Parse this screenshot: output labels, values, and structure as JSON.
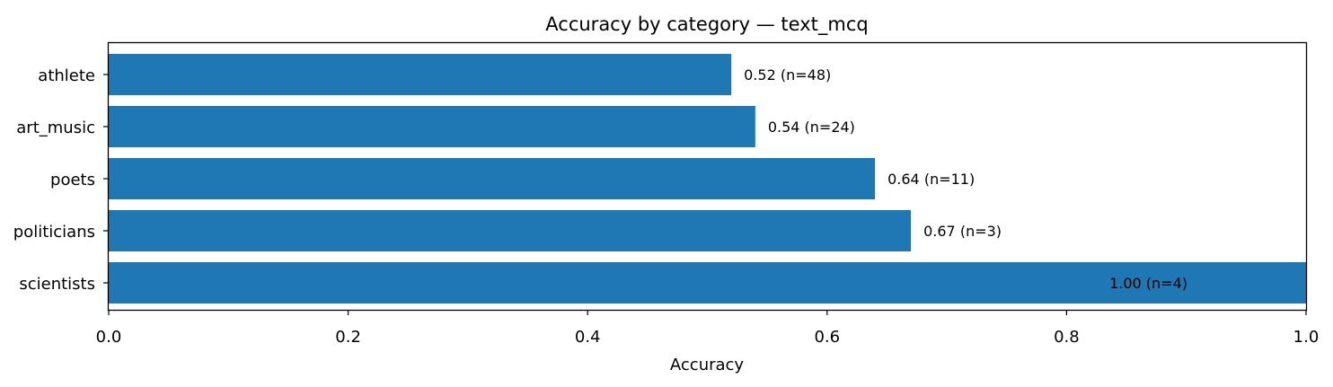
{
  "chart_data": {
    "type": "bar",
    "orientation": "horizontal",
    "title": "Accuracy by category — text_mcq",
    "xlabel": "Accuracy",
    "ylabel": "",
    "xlim": [
      0.0,
      1.0
    ],
    "xticks": [
      "0.0",
      "0.2",
      "0.4",
      "0.6",
      "0.8",
      "1.0"
    ],
    "categories": [
      "athlete",
      "art_music",
      "poets",
      "politicians",
      "scientists"
    ],
    "values": [
      0.52,
      0.54,
      0.64,
      0.67,
      1.0
    ],
    "n": [
      48,
      24,
      11,
      3,
      4
    ],
    "bar_labels": [
      "0.52  (n=48)",
      "0.54  (n=24)",
      "0.64  (n=11)",
      "0.67  (n=3)",
      "1.00  (n=4)"
    ],
    "bar_color": "#1f77b4",
    "grid": false,
    "legend": "none"
  }
}
